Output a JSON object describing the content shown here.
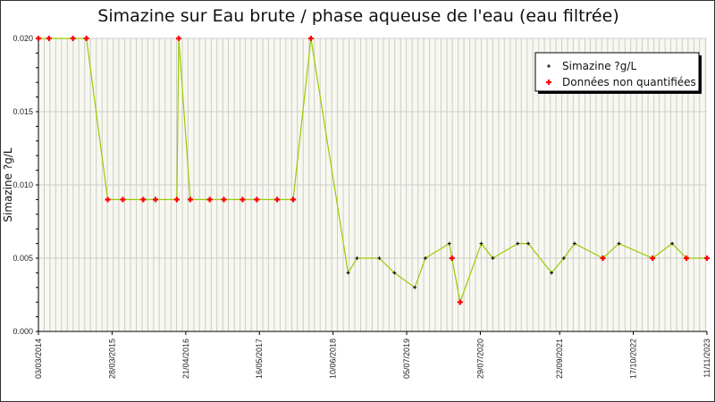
{
  "chart_data": {
    "type": "line",
    "title": "Simazine sur Eau brute / phase aqueuse de l'eau (eau filtrée)",
    "ylabel": "Simazine ?g/L",
    "xlabel": "",
    "xlim": [
      "2014-03-03",
      "2023-11-11"
    ],
    "ylim": [
      0,
      0.02
    ],
    "x_tick_labels": [
      "03/03/2014",
      "28/03/2015",
      "21/04/2016",
      "16/05/2017",
      "10/06/2018",
      "05/07/2019",
      "29/07/2020",
      "22/09/2021",
      "17/10/2022",
      "11/11/2023"
    ],
    "x_tick_dates": [
      "2014-03-03",
      "2015-03-28",
      "2016-04-21",
      "2017-05-16",
      "2018-06-10",
      "2019-07-05",
      "2020-07-29",
      "2021-09-22",
      "2022-10-17",
      "2023-11-11"
    ],
    "y_tick_labels": [
      "0.000",
      "0.005",
      "0.010",
      "0.015",
      "0.020"
    ],
    "y_ticks": [
      0,
      0.005,
      0.01,
      0.015,
      0.02
    ],
    "grid": true,
    "legend_position": "top-right",
    "colors": {
      "line": "#99cc00",
      "quantified": "#000000",
      "non_quantified": "#ff0000",
      "plot_bg": "#f8f8f0",
      "grid": "#cccccc"
    },
    "legend": [
      {
        "label": "Simazine ?g/L",
        "marker": "black-plus"
      },
      {
        "label": "Données non quantifiées",
        "marker": "red-plus"
      }
    ],
    "points": [
      {
        "date": "2014-03-03",
        "value": 0.02,
        "nq": true
      },
      {
        "date": "2014-04-28",
        "value": 0.02,
        "nq": true
      },
      {
        "date": "2014-09-02",
        "value": 0.02,
        "nq": true
      },
      {
        "date": "2014-11-12",
        "value": 0.02,
        "nq": true
      },
      {
        "date": "2015-03-05",
        "value": 0.009,
        "nq": true
      },
      {
        "date": "2015-05-24",
        "value": 0.009,
        "nq": true
      },
      {
        "date": "2015-09-09",
        "value": 0.009,
        "nq": true
      },
      {
        "date": "2015-11-13",
        "value": 0.009,
        "nq": true
      },
      {
        "date": "2016-03-05",
        "value": 0.009,
        "nq": true
      },
      {
        "date": "2016-03-15",
        "value": 0.02,
        "nq": true
      },
      {
        "date": "2016-05-15",
        "value": 0.009,
        "nq": true
      },
      {
        "date": "2016-08-26",
        "value": 0.009,
        "nq": true
      },
      {
        "date": "2016-11-09",
        "value": 0.009,
        "nq": true
      },
      {
        "date": "2017-02-16",
        "value": 0.009,
        "nq": true
      },
      {
        "date": "2017-05-02",
        "value": 0.009,
        "nq": true
      },
      {
        "date": "2017-08-18",
        "value": 0.009,
        "nq": true
      },
      {
        "date": "2017-11-11",
        "value": 0.009,
        "nq": true
      },
      {
        "date": "2018-02-13",
        "value": 0.02,
        "nq": true
      },
      {
        "date": "2018-08-29",
        "value": 0.004,
        "nq": false
      },
      {
        "date": "2018-10-15",
        "value": 0.005,
        "nq": false
      },
      {
        "date": "2019-02-10",
        "value": 0.005,
        "nq": false
      },
      {
        "date": "2019-05-01",
        "value": 0.004,
        "nq": false
      },
      {
        "date": "2019-08-17",
        "value": 0.003,
        "nq": false
      },
      {
        "date": "2019-10-12",
        "value": 0.005,
        "nq": false
      },
      {
        "date": "2020-02-16",
        "value": 0.006,
        "nq": false
      },
      {
        "date": "2020-03-01",
        "value": 0.005,
        "nq": true
      },
      {
        "date": "2020-04-13",
        "value": 0.002,
        "nq": true
      },
      {
        "date": "2020-08-03",
        "value": 0.006,
        "nq": false
      },
      {
        "date": "2020-10-03",
        "value": 0.005,
        "nq": false
      },
      {
        "date": "2021-02-12",
        "value": 0.006,
        "nq": false
      },
      {
        "date": "2021-04-09",
        "value": 0.006,
        "nq": false
      },
      {
        "date": "2021-08-10",
        "value": 0.004,
        "nq": false
      },
      {
        "date": "2021-10-14",
        "value": 0.005,
        "nq": false
      },
      {
        "date": "2021-12-10",
        "value": 0.006,
        "nq": false
      },
      {
        "date": "2022-05-09",
        "value": 0.005,
        "nq": true
      },
      {
        "date": "2022-08-02",
        "value": 0.006,
        "nq": false
      },
      {
        "date": "2023-01-27",
        "value": 0.005,
        "nq": true
      },
      {
        "date": "2023-05-11",
        "value": 0.006,
        "nq": false
      },
      {
        "date": "2023-07-25",
        "value": 0.005,
        "nq": true
      },
      {
        "date": "2023-11-11",
        "value": 0.005,
        "nq": true
      }
    ]
  }
}
